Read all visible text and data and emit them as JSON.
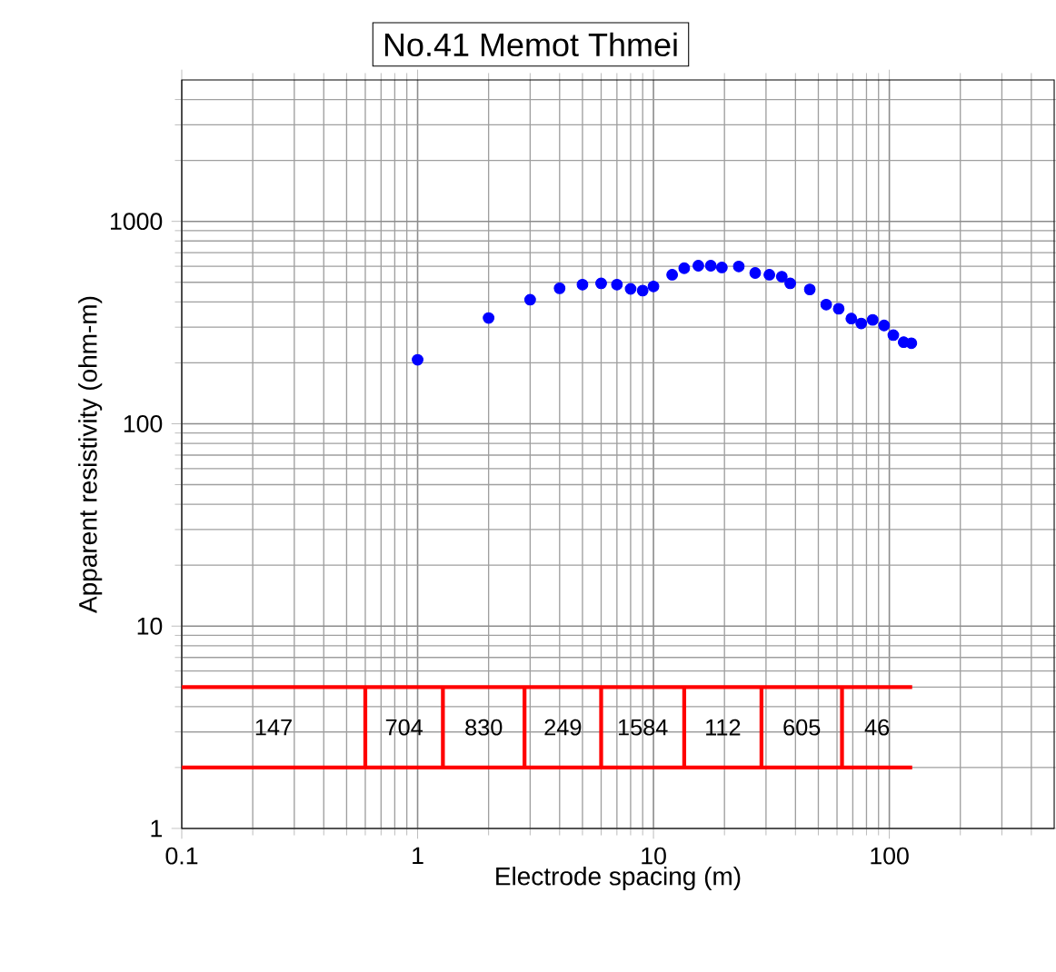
{
  "chart_data": {
    "type": "scatter",
    "title": "No.41 Memot Thmei",
    "xlabel": "Electrode spacing (m)",
    "ylabel": "Apparent resistivity (ohm-m)",
    "log": "xy",
    "grid": true,
    "xlim": [
      0.1,
      500
    ],
    "ylim": [
      1,
      5000
    ],
    "xticks": [
      0.1,
      1,
      10,
      100
    ],
    "yticks": [
      1,
      10,
      100,
      1000
    ],
    "series": [
      {
        "color": "#0000ff",
        "marker": "circle",
        "x": [
          1,
          2,
          3,
          4,
          5,
          6,
          7,
          8,
          9,
          10,
          12,
          13.5,
          15.5,
          17.5,
          19.5,
          23,
          27,
          31,
          35,
          38,
          46,
          54,
          61,
          69,
          76,
          85,
          95,
          104,
          115,
          124
        ],
        "values": [
          207,
          333,
          410,
          467,
          487,
          494,
          487,
          464,
          455,
          477,
          545,
          587,
          604,
          604,
          592,
          599,
          556,
          545,
          533,
          494,
          461,
          388,
          370,
          331,
          313,
          326,
          306,
          274,
          253,
          250
        ]
      },
      {
        "type": "line",
        "color": "#ff0000",
        "x": [
          0.1,
          125
        ],
        "values": [
          5,
          5
        ]
      },
      {
        "type": "line",
        "color": "#ff0000",
        "x": [
          0.1,
          125
        ],
        "values": [
          2,
          2
        ]
      },
      {
        "type": "line",
        "color": "#ff0000",
        "x": [
          0.6,
          0.6
        ],
        "values": [
          2,
          5
        ]
      },
      {
        "type": "line",
        "color": "#ff0000",
        "x": [
          1.28,
          1.28
        ],
        "values": [
          2,
          5
        ]
      },
      {
        "type": "line",
        "color": "#ff0000",
        "x": [
          2.84,
          2.84
        ],
        "values": [
          2,
          5
        ]
      },
      {
        "type": "line",
        "color": "#ff0000",
        "x": [
          6,
          6
        ],
        "values": [
          2,
          5
        ]
      },
      {
        "type": "line",
        "color": "#ff0000",
        "x": [
          13.5,
          13.5
        ],
        "values": [
          2,
          5
        ]
      },
      {
        "type": "line",
        "color": "#ff0000",
        "x": [
          28.7,
          28.7
        ],
        "values": [
          2,
          5
        ]
      },
      {
        "type": "line",
        "color": "#ff0000",
        "x": [
          63,
          63
        ],
        "values": [
          2,
          5
        ]
      }
    ],
    "annotations": [
      "147",
      "704",
      "830",
      "249",
      "1584",
      "112",
      "605",
      "46"
    ]
  }
}
